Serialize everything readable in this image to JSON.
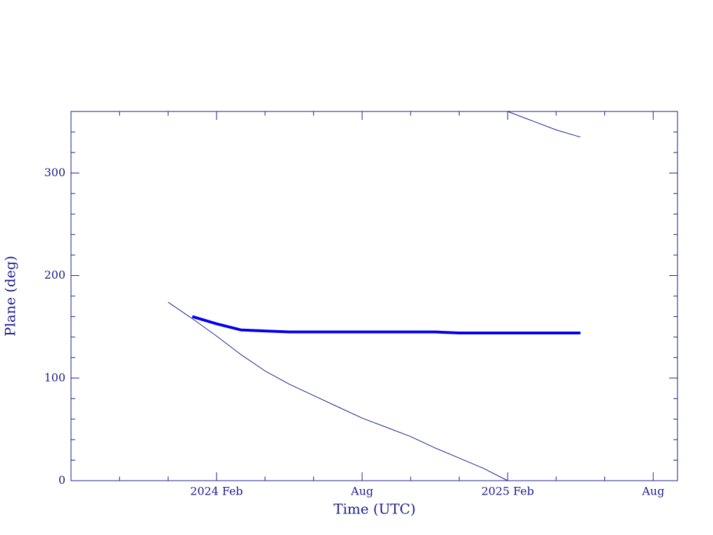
{
  "chart_data": {
    "type": "line",
    "x_label": "Time (UTC)",
    "y_label": "Plane (deg)",
    "x": [
      "2023-12",
      "2024-01",
      "2024-02",
      "2024-03",
      "2024-04",
      "2024-05",
      "2024-06",
      "2024-07",
      "2024-08",
      "2024-09",
      "2024-10",
      "2024-11",
      "2024-12",
      "2025-01",
      "2025-02",
      "2025-03",
      "2025-04",
      "2025-05"
    ],
    "series": [
      {
        "color": "#1a1a8c",
        "width": 1,
        "values": [
          174,
          158,
          141,
          123,
          107,
          94,
          83,
          72,
          61,
          52,
          43,
          32,
          22,
          12,
          0,
          null,
          null,
          null
        ]
      },
      {
        "color": "#1a1a8c",
        "width": 1,
        "values": [
          null,
          null,
          null,
          null,
          null,
          null,
          null,
          null,
          null,
          null,
          null,
          null,
          null,
          null,
          360,
          351,
          342,
          335
        ]
      },
      {
        "color": "#0000ee",
        "width": 4,
        "values": [
          null,
          160,
          153,
          147,
          146,
          145,
          145,
          145,
          145,
          145,
          145,
          145,
          144,
          144,
          144,
          144,
          144,
          144
        ]
      }
    ],
    "xlim": [
      "2023-08",
      "2025-09"
    ],
    "xticks": [
      {
        "value": "2024-02",
        "label": "2024 Feb"
      },
      {
        "value": "2024-08",
        "label": "Aug"
      },
      {
        "value": "2025-02",
        "label": "2025 Feb"
      },
      {
        "value": "2025-08",
        "label": "Aug"
      }
    ],
    "xminorticks": [
      "2023-10",
      "2023-12",
      "2024-04",
      "2024-06",
      "2024-10",
      "2024-12",
      "2025-04",
      "2025-06"
    ],
    "ylim": [
      0,
      360
    ],
    "yticks": [
      0,
      100,
      200,
      300
    ],
    "yminorticks": [
      20,
      40,
      60,
      80,
      120,
      140,
      160,
      180,
      220,
      240,
      260,
      280,
      320,
      340,
      360
    ],
    "axis_color": "#1a1a8c"
  }
}
